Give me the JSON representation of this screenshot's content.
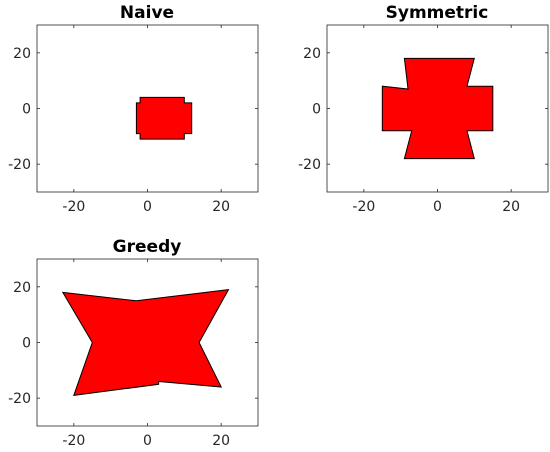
{
  "chart_data": [
    {
      "type": "area",
      "title": "Naive",
      "xlim": [
        -30,
        30
      ],
      "ylim": [
        -30,
        30
      ],
      "xticks": [
        -20,
        0,
        20
      ],
      "yticks": [
        -20,
        0,
        20
      ],
      "xtick_labels": [
        "-20",
        "0",
        "20"
      ],
      "ytick_labels": [
        "-20",
        "0",
        "20"
      ],
      "grid": false,
      "fill_color": "#ff0000",
      "edge_color": "#000000",
      "polygon": [
        [
          -2,
          3
        ],
        [
          -2,
          4
        ],
        [
          10,
          4
        ],
        [
          10,
          2
        ],
        [
          12,
          2
        ],
        [
          12,
          -9
        ],
        [
          10,
          -9
        ],
        [
          10,
          -11
        ],
        [
          -2,
          -11
        ],
        [
          -2,
          -9
        ],
        [
          -3,
          -9
        ],
        [
          -3,
          2
        ],
        [
          -2,
          2
        ]
      ]
    },
    {
      "type": "area",
      "title": "Symmetric",
      "xlim": [
        -30,
        30
      ],
      "ylim": [
        -30,
        30
      ],
      "xticks": [
        -20,
        0,
        20
      ],
      "yticks": [
        -20,
        0,
        20
      ],
      "xtick_labels": [
        "-20",
        "0",
        "20"
      ],
      "ytick_labels": [
        "-20",
        "0",
        "20"
      ],
      "grid": false,
      "fill_color": "#ff0000",
      "edge_color": "#000000",
      "polygon": [
        [
          -9,
          18
        ],
        [
          10,
          18
        ],
        [
          8,
          8
        ],
        [
          15,
          8
        ],
        [
          15,
          -8
        ],
        [
          8,
          -8
        ],
        [
          10,
          -18
        ],
        [
          -9,
          -18
        ],
        [
          -7,
          -8
        ],
        [
          -15,
          -8
        ],
        [
          -15,
          8
        ],
        [
          -8,
          7
        ]
      ]
    },
    {
      "type": "area",
      "title": "Greedy",
      "xlim": [
        -30,
        30
      ],
      "ylim": [
        -30,
        30
      ],
      "xticks": [
        -20,
        0,
        20
      ],
      "yticks": [
        -20,
        0,
        20
      ],
      "xtick_labels": [
        "-20",
        "0",
        "20"
      ],
      "ytick_labels": [
        "-20",
        "0",
        "20"
      ],
      "grid": false,
      "fill_color": "#ff0000",
      "edge_color": "#000000",
      "polygon": [
        [
          -23,
          18
        ],
        [
          -3,
          15
        ],
        [
          22,
          19
        ],
        [
          14,
          0
        ],
        [
          20,
          -16
        ],
        [
          3,
          -14
        ],
        [
          3,
          -15
        ],
        [
          -20,
          -19
        ],
        [
          -15,
          0
        ]
      ]
    }
  ]
}
